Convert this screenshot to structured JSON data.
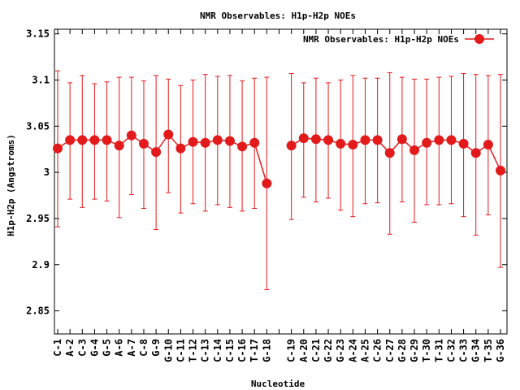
{
  "chart_data": {
    "type": "line",
    "title": "NMR Observables: H1p-H2p NOEs",
    "xlabel": "Nucleotide",
    "ylabel": "H1p-H2p (Angstroms)",
    "ylim": [
      2.825,
      3.155
    ],
    "yticks": [
      2.85,
      2.9,
      2.95,
      3,
      3.05,
      3.1,
      3.15
    ],
    "ytick_labels": [
      "2.85",
      "2.9",
      "2.95",
      "3",
      "3.05",
      "3.1",
      "3.15"
    ],
    "grid": false,
    "legend_position": "top-right",
    "color": "#e31a1c",
    "categories": [
      "C-1",
      "A-2",
      "C-3",
      "G-4",
      "G-5",
      "A-6",
      "A-7",
      "C-8",
      "G-9",
      "G-10",
      "C-11",
      "T-12",
      "C-13",
      "C-14",
      "C-15",
      "C-16",
      "T-17",
      "G-18",
      "",
      "C-19",
      "A-20",
      "C-21",
      "G-22",
      "G-23",
      "A-24",
      "A-25",
      "C-26",
      "C-27",
      "G-28",
      "G-29",
      "T-30",
      "T-31",
      "C-32",
      "C-33",
      "G-34",
      "T-35",
      "G-36"
    ],
    "series": [
      {
        "name": "NMR Observables: H1p-H2p NOEs",
        "values": [
          3.026,
          3.035,
          3.035,
          3.035,
          3.035,
          3.029,
          3.04,
          3.031,
          3.022,
          3.041,
          3.026,
          3.033,
          3.032,
          3.035,
          3.034,
          3.028,
          3.032,
          2.988,
          null,
          3.029,
          3.037,
          3.036,
          3.035,
          3.031,
          3.03,
          3.035,
          3.035,
          3.021,
          3.036,
          3.024,
          3.032,
          3.035,
          3.035,
          3.031,
          3.021,
          3.03,
          3.002
        ],
        "err_low": [
          2.941,
          2.971,
          2.962,
          2.971,
          2.969,
          2.951,
          2.976,
          2.961,
          2.938,
          2.978,
          2.956,
          2.966,
          2.958,
          2.965,
          2.962,
          2.958,
          2.961,
          2.873,
          null,
          2.949,
          2.973,
          2.968,
          2.972,
          2.959,
          2.952,
          2.966,
          2.967,
          2.933,
          2.968,
          2.946,
          2.965,
          2.965,
          2.966,
          2.952,
          2.932,
          2.954,
          2.897
        ],
        "err_high": [
          3.11,
          3.097,
          3.105,
          3.096,
          3.098,
          3.103,
          3.103,
          3.099,
          3.105,
          3.101,
          3.094,
          3.1,
          3.106,
          3.104,
          3.105,
          3.099,
          3.102,
          3.103,
          null,
          3.107,
          3.097,
          3.102,
          3.097,
          3.1,
          3.105,
          3.102,
          3.102,
          3.108,
          3.103,
          3.101,
          3.101,
          3.103,
          3.104,
          3.107,
          3.106,
          3.105,
          3.106
        ]
      }
    ]
  }
}
